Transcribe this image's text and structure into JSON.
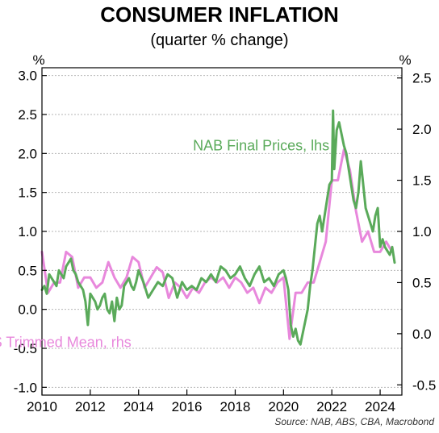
{
  "chart_data": {
    "type": "line",
    "title": "CONSUMER INFLATION",
    "subtitle": "(quarter % change)",
    "y_unit_left": "%",
    "y_unit_right": "%",
    "source": "Source: NAB, ABS, CBA, Macrobond",
    "xlim": [
      2010,
      2024.9
    ],
    "x_ticks": [
      2010,
      2012,
      2014,
      2016,
      2018,
      2020,
      2022,
      2024
    ],
    "x_tick_labels": [
      "2010",
      "2012",
      "2014",
      "2016",
      "2018",
      "2020",
      "2022",
      "2024"
    ],
    "ylim_left": [
      -1.1,
      3.1
    ],
    "y_ticks_left": [
      -1.0,
      -0.5,
      0.0,
      0.5,
      1.0,
      1.5,
      2.0,
      2.5,
      3.0
    ],
    "y_tick_labels_left": [
      "-1.0",
      "-0.5",
      "0.0",
      "0.5",
      "1.0",
      "1.5",
      "2.0",
      "2.5",
      "3.0"
    ],
    "ylim_right": [
      -0.6,
      2.6
    ],
    "y_ticks_right": [
      -0.5,
      0.0,
      0.5,
      1.0,
      1.5,
      2.0,
      2.5
    ],
    "y_tick_labels_right": [
      "-0.5",
      "0.0",
      "0.5",
      "1.0",
      "1.5",
      "2.0",
      "2.5"
    ],
    "grid": true,
    "series": [
      {
        "name": "NAB Final Prices, lhs",
        "axis": "left",
        "color": "#5aaa5a",
        "x": [
          2010.0,
          2010.1,
          2010.2,
          2010.3,
          2010.4,
          2010.5,
          2010.6,
          2010.7,
          2010.8,
          2010.9,
          2011.0,
          2011.1,
          2011.2,
          2011.3,
          2011.4,
          2011.5,
          2011.6,
          2011.7,
          2011.8,
          2011.9,
          2012.0,
          2012.1,
          2012.2,
          2012.3,
          2012.4,
          2012.5,
          2012.6,
          2012.7,
          2012.8,
          2012.9,
          2013.0,
          2013.1,
          2013.2,
          2013.3,
          2013.4,
          2013.5,
          2013.6,
          2013.7,
          2013.8,
          2013.9,
          2014.0,
          2014.2,
          2014.4,
          2014.6,
          2014.8,
          2015.0,
          2015.2,
          2015.4,
          2015.6,
          2015.8,
          2016.0,
          2016.2,
          2016.4,
          2016.6,
          2016.8,
          2017.0,
          2017.2,
          2017.4,
          2017.6,
          2017.8,
          2018.0,
          2018.2,
          2018.4,
          2018.6,
          2018.8,
          2019.0,
          2019.2,
          2019.4,
          2019.6,
          2019.8,
          2020.0,
          2020.1,
          2020.2,
          2020.3,
          2020.4,
          2020.5,
          2020.6,
          2020.7,
          2020.8,
          2020.9,
          2021.0,
          2021.1,
          2021.2,
          2021.3,
          2021.4,
          2021.5,
          2021.6,
          2021.7,
          2021.8,
          2021.9,
          2022.0,
          2022.05,
          2022.1,
          2022.2,
          2022.3,
          2022.4,
          2022.5,
          2022.6,
          2022.7,
          2022.8,
          2022.9,
          2023.0,
          2023.1,
          2023.2,
          2023.3,
          2023.4,
          2023.5,
          2023.6,
          2023.7,
          2023.8,
          2023.9,
          2024.0,
          2024.1,
          2024.2,
          2024.3,
          2024.4,
          2024.5,
          2024.6
        ],
        "y": [
          0.25,
          0.3,
          0.2,
          0.45,
          0.4,
          0.35,
          0.3,
          0.5,
          0.45,
          0.4,
          0.55,
          0.6,
          0.65,
          0.5,
          0.45,
          0.35,
          0.3,
          0.25,
          0.1,
          -0.2,
          0.2,
          0.15,
          0.1,
          0.0,
          0.05,
          0.15,
          0.2,
          0.0,
          -0.05,
          0.1,
          -0.15,
          0.15,
          0.0,
          0.05,
          0.3,
          0.35,
          0.4,
          0.3,
          0.25,
          0.35,
          0.5,
          0.35,
          0.15,
          0.25,
          0.35,
          0.3,
          0.45,
          0.4,
          0.15,
          0.35,
          0.25,
          0.3,
          0.25,
          0.4,
          0.35,
          0.45,
          0.35,
          0.55,
          0.5,
          0.4,
          0.45,
          0.55,
          0.4,
          0.3,
          0.45,
          0.55,
          0.35,
          0.4,
          0.3,
          0.45,
          0.5,
          0.4,
          0.25,
          -0.2,
          -0.35,
          -0.25,
          -0.4,
          -0.45,
          -0.3,
          -0.15,
          0.0,
          0.3,
          0.5,
          0.8,
          1.1,
          1.2,
          1.0,
          1.2,
          1.4,
          1.6,
          1.65,
          2.55,
          1.8,
          2.3,
          2.4,
          2.25,
          2.1,
          2.0,
          1.8,
          1.6,
          1.4,
          1.3,
          1.5,
          1.9,
          1.6,
          1.3,
          1.2,
          1.1,
          1.0,
          1.2,
          1.3,
          0.8,
          0.9,
          0.8,
          0.75,
          0.7,
          0.8,
          0.6
        ]
      },
      {
        "name": "ABS Trimmed Mean, rhs",
        "axis": "right",
        "color": "#e888dc",
        "x": [
          2010.0,
          2010.25,
          2010.5,
          2010.75,
          2011.0,
          2011.25,
          2011.5,
          2011.75,
          2012.0,
          2012.25,
          2012.5,
          2012.75,
          2013.0,
          2013.25,
          2013.5,
          2013.75,
          2014.0,
          2014.25,
          2014.5,
          2014.75,
          2015.0,
          2015.25,
          2015.5,
          2015.75,
          2016.0,
          2016.25,
          2016.5,
          2016.75,
          2017.0,
          2017.25,
          2017.5,
          2017.75,
          2018.0,
          2018.25,
          2018.5,
          2018.75,
          2019.0,
          2019.25,
          2019.5,
          2019.75,
          2020.0,
          2020.25,
          2020.5,
          2020.75,
          2021.0,
          2021.25,
          2021.5,
          2021.75,
          2022.0,
          2022.25,
          2022.5,
          2022.75,
          2023.0,
          2023.25,
          2023.5,
          2023.75,
          2024.0,
          2024.25,
          2024.5
        ],
        "y": [
          0.8,
          0.4,
          0.5,
          0.5,
          0.8,
          0.75,
          0.45,
          0.55,
          0.55,
          0.45,
          0.5,
          0.7,
          0.55,
          0.45,
          0.55,
          0.75,
          0.7,
          0.45,
          0.55,
          0.65,
          0.6,
          0.35,
          0.5,
          0.45,
          0.35,
          0.45,
          0.4,
          0.5,
          0.55,
          0.5,
          0.55,
          0.45,
          0.55,
          0.5,
          0.4,
          0.45,
          0.3,
          0.45,
          0.4,
          0.5,
          0.55,
          -0.05,
          0.4,
          0.4,
          0.5,
          0.5,
          0.7,
          0.9,
          1.5,
          1.5,
          1.8,
          1.6,
          1.2,
          0.9,
          1.0,
          0.8,
          0.8,
          0.9,
          0.8
        ]
      }
    ],
    "annotations": [
      {
        "text": "NAB Final Prices, lhs",
        "color": "#5aaa5a",
        "x": 2021.9,
        "y_left": 2.1
      },
      {
        "text": "ABS Trimmed Mean, rhs",
        "color": "#e888dc",
        "x": 2013.7,
        "y_left": -0.42
      }
    ]
  }
}
